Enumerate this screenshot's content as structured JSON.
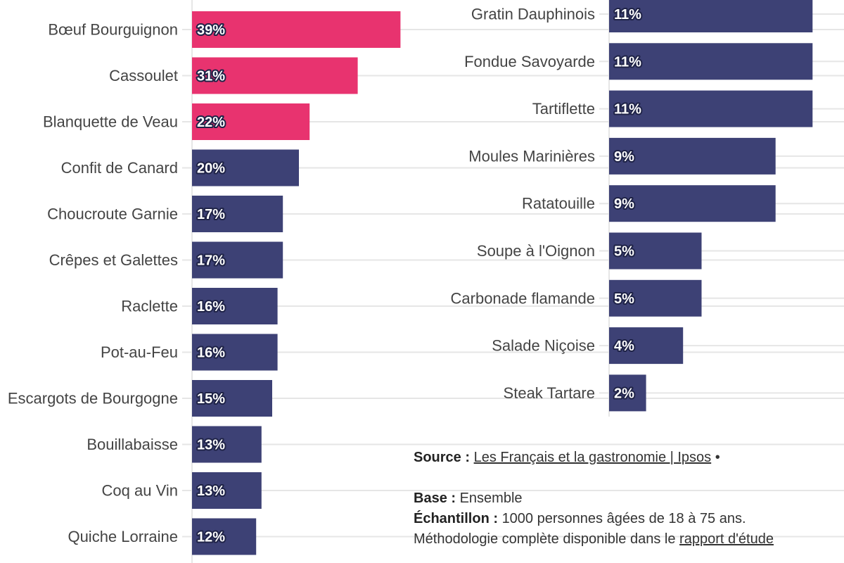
{
  "colors": {
    "highlight": "#e8336f",
    "bar": "#3d4175",
    "grid": "#e6e6e6",
    "label": "#444444",
    "value_stroke": "#1f2347"
  },
  "chart_data": [
    {
      "type": "bar",
      "orientation": "horizontal",
      "unit": "%",
      "xlim": [
        0,
        40
      ],
      "grid": true,
      "categories": [
        "Bœuf Bourguignon",
        "Cassoulet",
        "Blanquette de Veau",
        "Confit de Canard",
        "Choucroute Garnie",
        "Crêpes et Galettes",
        "Raclette",
        "Pot-au-Feu",
        "Escargots de Bourgogne",
        "Bouillabaisse",
        "Coq au Vin",
        "Quiche Lorraine"
      ],
      "values": [
        39,
        31,
        22,
        20,
        17,
        17,
        16,
        16,
        15,
        13,
        13,
        12
      ],
      "value_labels": [
        "39%",
        "31%",
        "22%",
        "20%",
        "17%",
        "17%",
        "16%",
        "16%",
        "15%",
        "13%",
        "13%",
        "12%"
      ],
      "highlighted": [
        true,
        true,
        true,
        false,
        false,
        false,
        false,
        false,
        false,
        false,
        false,
        false
      ]
    },
    {
      "type": "bar",
      "orientation": "horizontal",
      "unit": "%",
      "xlim": [
        0,
        40
      ],
      "grid": true,
      "categories": [
        "Gratin Dauphinois",
        "Fondue Savoyarde",
        "Tartiflette",
        "Moules Marinières",
        "Ratatouille",
        "Soupe à l'Oignon",
        "Carbonade flamande",
        "Salade Niçoise",
        "Steak Tartare"
      ],
      "values": [
        11,
        11,
        11,
        9,
        9,
        5,
        5,
        4,
        2
      ],
      "value_labels": [
        "11%",
        "11%",
        "11%",
        "9%",
        "9%",
        "5%",
        "5%",
        "4%",
        "2%"
      ],
      "highlighted": [
        false,
        false,
        false,
        false,
        false,
        false,
        false,
        false,
        false
      ]
    }
  ],
  "notes": {
    "source_label": "Source :",
    "source_link": "Les Français et la gastronomie | Ipsos",
    "source_sep": "•",
    "base_label": "Base :",
    "base_value": "Ensemble",
    "sample_label": "Échantillon :",
    "sample_value": "1000 personnes âgées de 18 à 75 ans.",
    "method_text": "Méthodologie complète disponible dans le",
    "method_link": "rapport d'étude"
  }
}
